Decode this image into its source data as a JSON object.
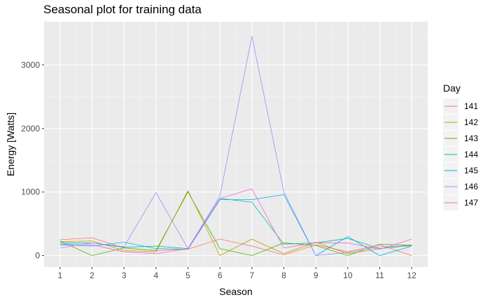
{
  "chart_data": {
    "type": "line",
    "title": "Seasonal plot for training data",
    "xlabel": "Season",
    "ylabel": "Energy [Watts]",
    "x": [
      1,
      2,
      3,
      4,
      5,
      6,
      7,
      8,
      9,
      10,
      11,
      12
    ],
    "xlim": [
      0.5,
      12.5
    ],
    "ylim": [
      -180,
      3680
    ],
    "yticks": [
      0,
      1000,
      2000,
      3000
    ],
    "grid": true,
    "legend_title": "Day",
    "legend_position": "right",
    "series": [
      {
        "name": "141",
        "color": "#F8766D",
        "values": [
          250,
          280,
          120,
          80,
          100,
          260,
          150,
          10,
          170,
          60,
          170,
          0
        ]
      },
      {
        "name": "142",
        "color": "#C49A00",
        "values": [
          220,
          230,
          80,
          60,
          1020,
          0,
          260,
          30,
          210,
          30,
          110,
          170
        ]
      },
      {
        "name": "143",
        "color": "#53B400",
        "values": [
          230,
          0,
          120,
          80,
          1000,
          110,
          0,
          200,
          160,
          0,
          180,
          160
        ]
      },
      {
        "name": "144",
        "color": "#00C094",
        "values": [
          200,
          200,
          130,
          150,
          110,
          900,
          840,
          180,
          200,
          270,
          110,
          160
        ]
      },
      {
        "name": "145",
        "color": "#00B6EB",
        "values": [
          170,
          150,
          210,
          110,
          100,
          880,
          880,
          960,
          0,
          300,
          0,
          150
        ]
      },
      {
        "name": "146",
        "color": "#A58AFF",
        "values": [
          120,
          200,
          140,
          990,
          110,
          940,
          3450,
          1000,
          0,
          50,
          140,
          150
        ]
      },
      {
        "name": "147",
        "color": "#FB61D7",
        "values": [
          180,
          170,
          60,
          30,
          110,
          900,
          1050,
          120,
          200,
          200,
          100,
          260
        ]
      }
    ]
  }
}
